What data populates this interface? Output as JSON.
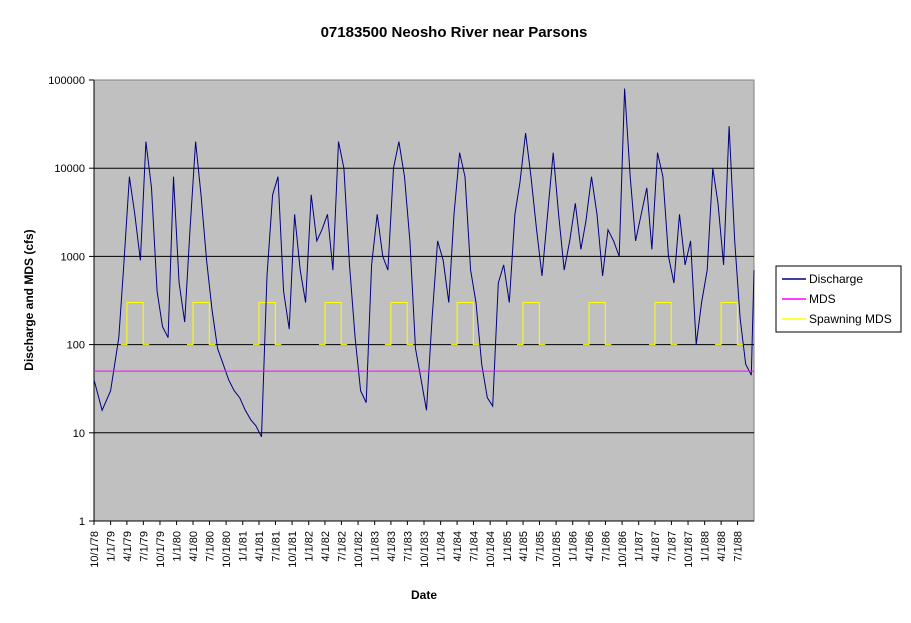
{
  "colors": {
    "plot_area": "#c0c0c0",
    "discharge": "#000080",
    "mds": "#ff00ff",
    "spawning_mds": "#ffff00",
    "gridline": "#000000"
  },
  "chart_data": {
    "type": "line",
    "title": "07183500 Neosho River near Parsons",
    "xlabel": "Date",
    "ylabel": "Discharge and MDS (cfs)",
    "yscale": "log",
    "ylim": [
      1,
      100000
    ],
    "y_ticks": [
      "1",
      "10",
      "100",
      "1000",
      "10000",
      "100000"
    ],
    "xlim": [
      "1978-10-01",
      "1988-09-30"
    ],
    "x_tick_labels": [
      "10/1/78",
      "1/1/79",
      "4/1/79",
      "7/1/79",
      "10/1/79",
      "1/1/80",
      "4/1/80",
      "7/1/80",
      "10/1/80",
      "1/1/81",
      "4/1/81",
      "7/1/81",
      "10/1/81",
      "1/1/82",
      "4/1/82",
      "7/1/82",
      "10/1/82",
      "1/1/83",
      "4/1/83",
      "7/1/83",
      "10/1/83",
      "1/1/84",
      "4/1/84",
      "7/1/84",
      "10/1/84",
      "1/1/85",
      "4/1/85",
      "7/1/85",
      "10/1/85",
      "1/1/86",
      "4/1/86",
      "7/1/86",
      "10/1/86",
      "1/1/87",
      "4/1/87",
      "7/1/87",
      "10/1/87",
      "1/1/88",
      "4/1/88",
      "7/1/88"
    ],
    "grid": "horizontal",
    "legend_position": "right",
    "series": [
      {
        "name": "Discharge",
        "x": [
          "1978-10-01",
          "1978-11-15",
          "1979-01-01",
          "1979-02-15",
          "1979-03-15",
          "1979-04-15",
          "1979-05-15",
          "1979-06-15",
          "1979-07-15",
          "1979-08-15",
          "1979-09-15",
          "1979-10-15",
          "1979-11-15",
          "1979-12-15",
          "1980-01-15",
          "1980-02-15",
          "1980-03-15",
          "1980-04-15",
          "1980-05-15",
          "1980-06-15",
          "1980-07-15",
          "1980-08-15",
          "1980-09-15",
          "1980-10-15",
          "1980-11-15",
          "1980-12-15",
          "1981-01-15",
          "1981-02-15",
          "1981-03-15",
          "1981-04-15",
          "1981-05-15",
          "1981-06-15",
          "1981-07-15",
          "1981-08-15",
          "1981-09-15",
          "1981-10-15",
          "1981-11-15",
          "1981-12-15",
          "1982-01-15",
          "1982-02-15",
          "1982-03-15",
          "1982-04-15",
          "1982-05-15",
          "1982-06-15",
          "1982-07-15",
          "1982-08-15",
          "1982-09-15",
          "1982-10-15",
          "1982-11-15",
          "1982-12-15",
          "1983-01-15",
          "1983-02-15",
          "1983-03-15",
          "1983-04-15",
          "1983-05-15",
          "1983-06-15",
          "1983-07-15",
          "1983-08-15",
          "1983-09-15",
          "1983-10-15",
          "1983-11-15",
          "1983-12-15",
          "1984-01-15",
          "1984-02-15",
          "1984-03-15",
          "1984-04-15",
          "1984-05-15",
          "1984-06-15",
          "1984-07-15",
          "1984-08-15",
          "1984-09-15",
          "1984-10-15",
          "1984-11-15",
          "1984-12-15",
          "1985-01-15",
          "1985-02-15",
          "1985-03-15",
          "1985-04-15",
          "1985-05-15",
          "1985-06-15",
          "1985-07-15",
          "1985-08-15",
          "1985-09-15",
          "1985-10-15",
          "1985-11-15",
          "1985-12-15",
          "1986-01-15",
          "1986-02-15",
          "1986-03-15",
          "1986-04-15",
          "1986-05-15",
          "1986-06-15",
          "1986-07-15",
          "1986-08-15",
          "1986-09-15",
          "1986-10-15",
          "1986-11-15",
          "1986-12-15",
          "1987-01-15",
          "1987-02-15",
          "1987-03-15",
          "1987-04-15",
          "1987-05-15",
          "1987-06-15",
          "1987-07-15",
          "1987-08-15",
          "1987-09-15",
          "1987-10-15",
          "1987-11-15",
          "1987-12-15",
          "1988-01-15",
          "1988-02-15",
          "1988-03-15",
          "1988-04-15",
          "1988-05-15",
          "1988-06-15",
          "1988-07-15",
          "1988-08-15",
          "1988-09-15",
          "1988-09-30"
        ],
        "values": [
          40,
          18,
          30,
          120,
          800,
          8000,
          3000,
          900,
          20000,
          6000,
          400,
          160,
          120,
          8000,
          500,
          180,
          2000,
          20000,
          5000,
          900,
          250,
          90,
          60,
          40,
          30,
          25,
          18,
          14,
          12,
          9,
          600,
          5000,
          8000,
          400,
          150,
          3000,
          700,
          300,
          5000,
          1500,
          2000,
          3000,
          700,
          20000,
          10000,
          800,
          120,
          30,
          22,
          800,
          3000,
          1000,
          700,
          10000,
          20000,
          8000,
          1500,
          90,
          40,
          18,
          200,
          1500,
          900,
          300,
          3000,
          15000,
          8000,
          700,
          300,
          60,
          25,
          20,
          500,
          800,
          300,
          3000,
          7000,
          25000,
          8000,
          2000,
          600,
          3000,
          15000,
          3000,
          700,
          1500,
          4000,
          1200,
          2500,
          8000,
          3000,
          600,
          2000,
          1500,
          1000,
          80000,
          8000,
          1500,
          3000,
          6000,
          1200,
          15000,
          8000,
          1000,
          500,
          3000,
          800,
          1500,
          100,
          300,
          700,
          10000,
          4000,
          800,
          30000,
          1500,
          200,
          60,
          45,
          700
        ]
      },
      {
        "name": "MDS",
        "values": [
          50
        ]
      },
      {
        "name": "Spawning MDS",
        "base": 100,
        "high": 300,
        "high_periods": [
          [
            "1979-04-01",
            "1979-06-30"
          ],
          [
            "1980-04-01",
            "1980-06-30"
          ],
          [
            "1981-04-01",
            "1981-06-30"
          ],
          [
            "1982-04-01",
            "1982-06-30"
          ],
          [
            "1983-04-01",
            "1983-06-30"
          ],
          [
            "1984-04-01",
            "1984-06-30"
          ],
          [
            "1985-04-01",
            "1985-06-30"
          ],
          [
            "1986-04-01",
            "1986-06-30"
          ],
          [
            "1987-04-01",
            "1987-06-30"
          ],
          [
            "1988-04-01",
            "1988-06-30"
          ]
        ],
        "end_date": "1988-06-30"
      }
    ]
  }
}
